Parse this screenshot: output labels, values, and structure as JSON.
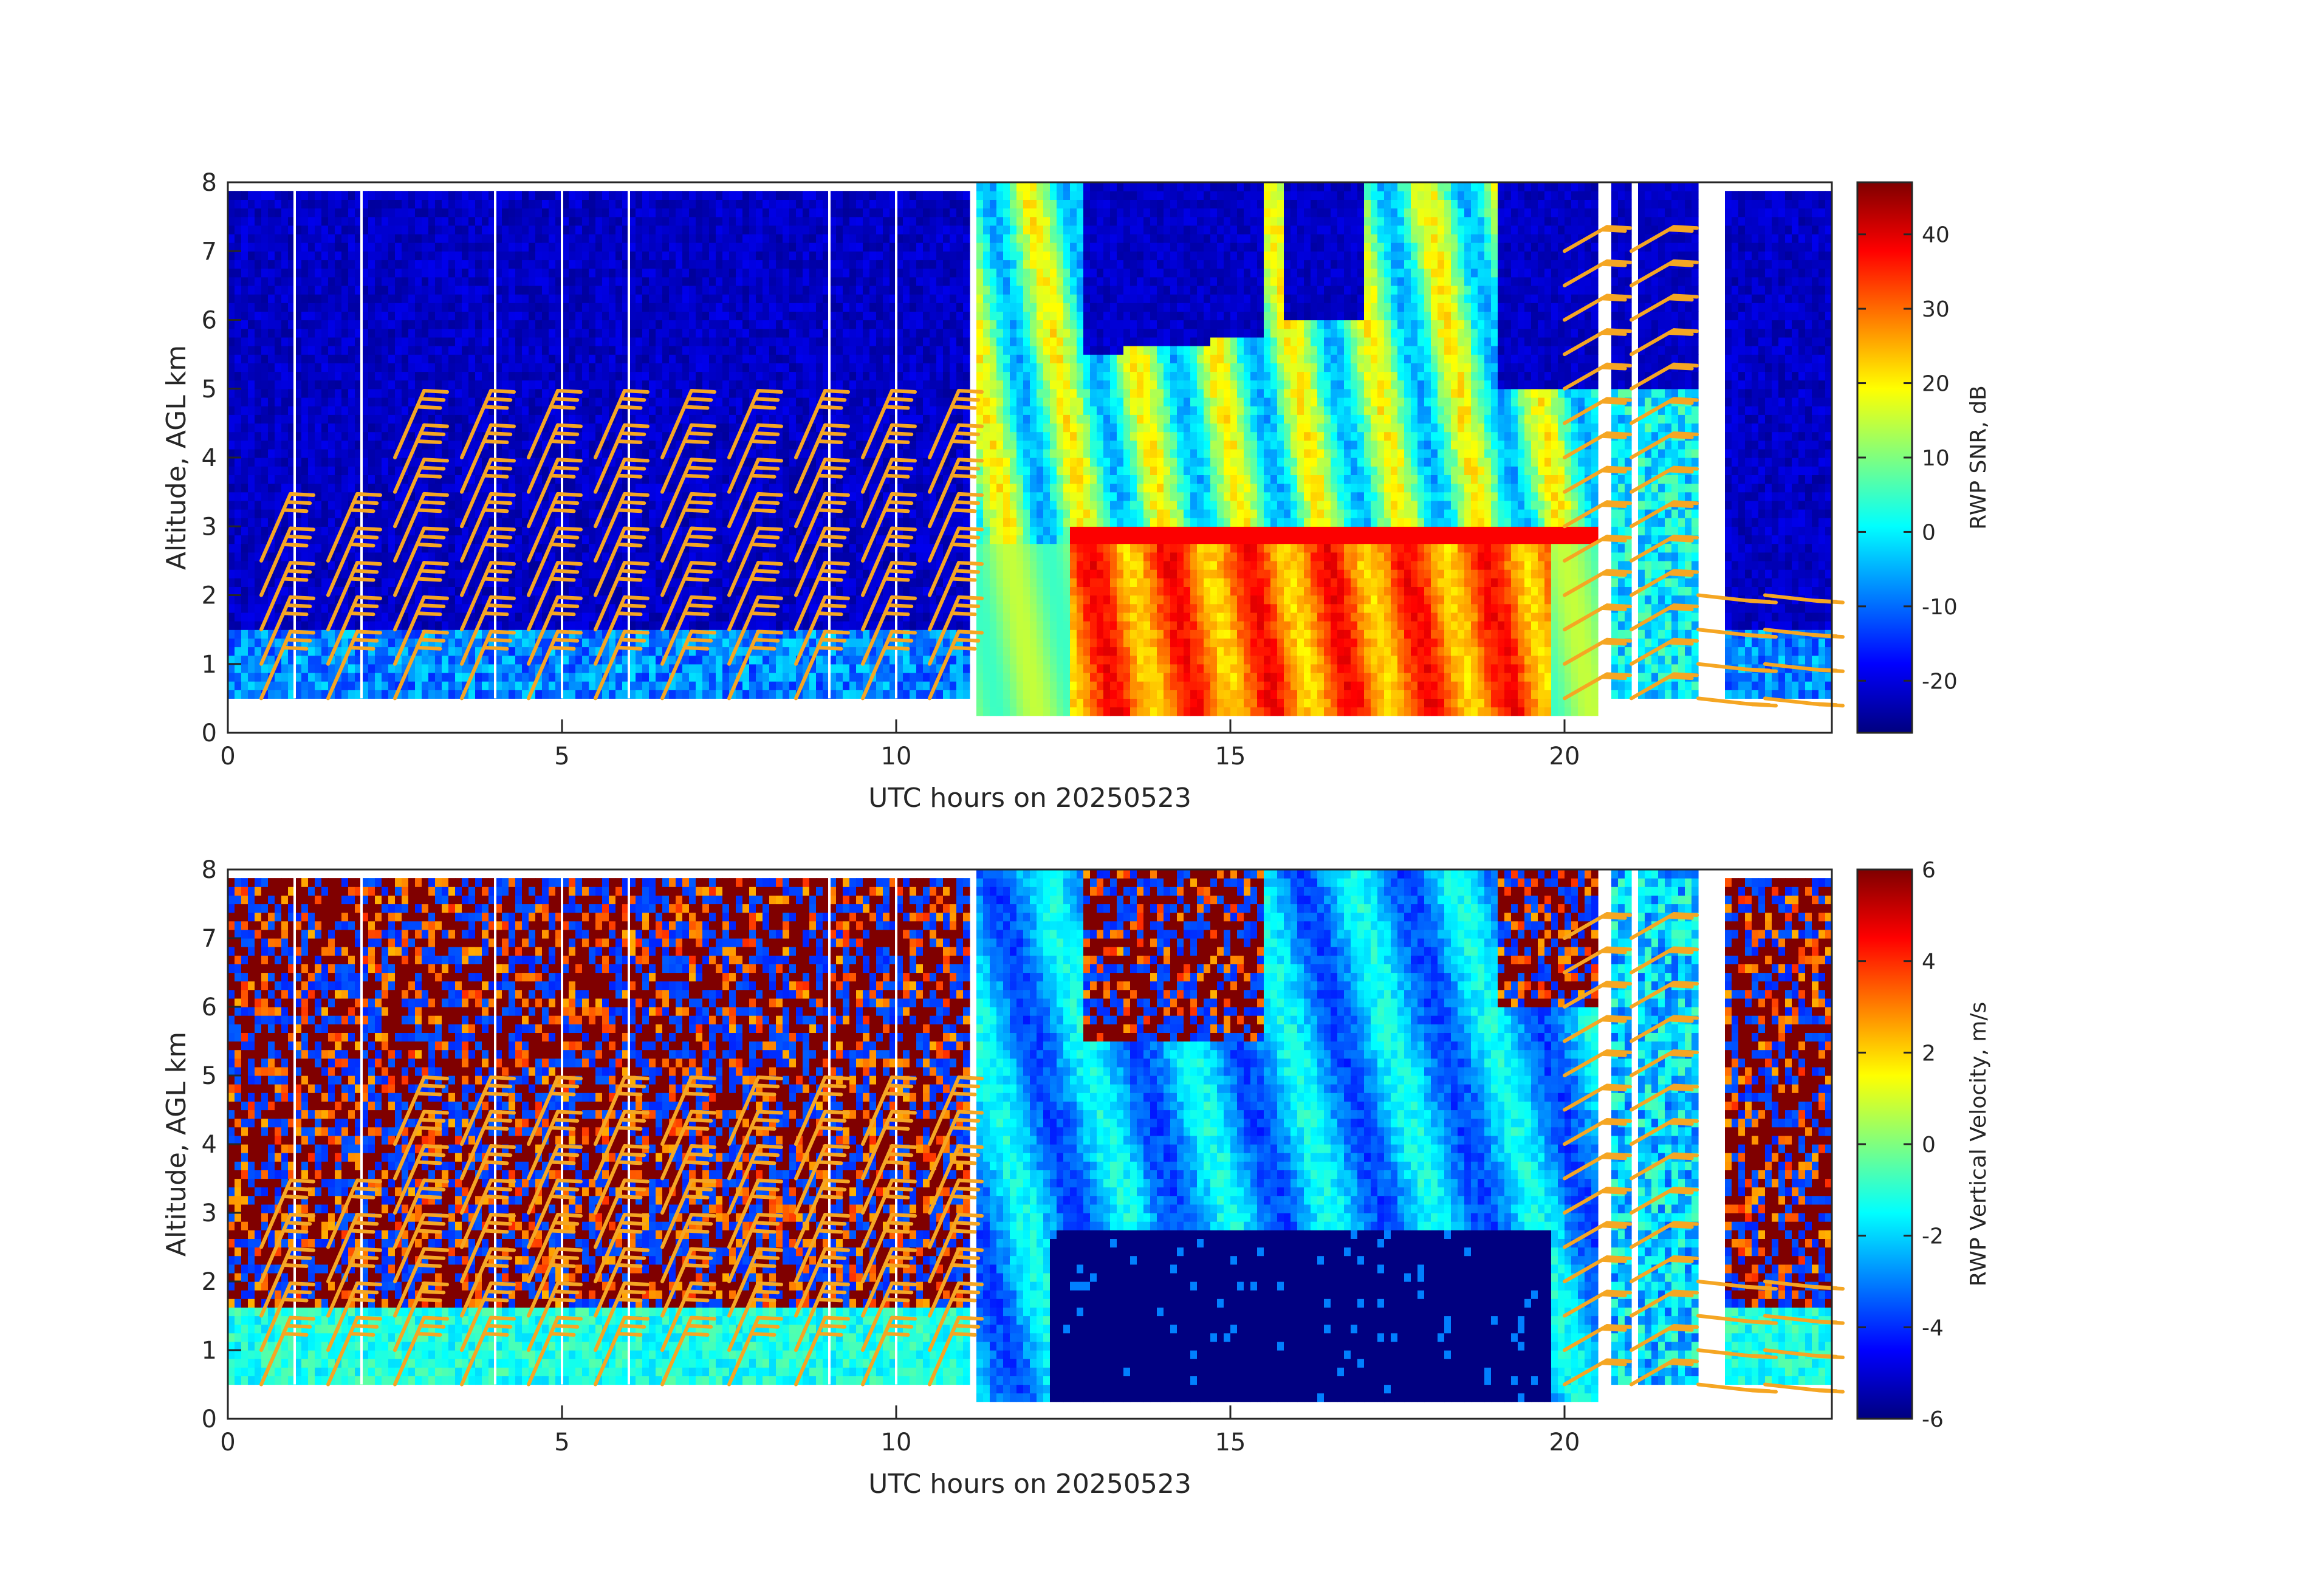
{
  "figure": {
    "charts_note_colormap": "jet",
    "barb_color": "#f5a623",
    "background": "#ffffff"
  },
  "chart_data": [
    {
      "type": "heatmap",
      "xlabel": "UTC hours on 20250523",
      "ylabel": "Altitude, AGL km",
      "xlim": [
        0,
        24
      ],
      "ylim": [
        0,
        8
      ],
      "x_ticks": [
        0,
        5,
        10,
        15,
        20
      ],
      "y_ticks": [
        0,
        1,
        2,
        3,
        4,
        5,
        6,
        7,
        8
      ],
      "colorbar": {
        "label": "RWP SNR, dB",
        "range": [
          -27,
          47
        ],
        "ticks": [
          -20,
          -10,
          0,
          10,
          20,
          30,
          40
        ],
        "colormap": "jet"
      },
      "data_gaps_hours": [
        [
          11.13,
          11.2
        ],
        [
          20.47,
          20.73
        ],
        [
          21.0,
          21.05
        ],
        [
          22.05,
          22.35
        ]
      ],
      "regions": [
        {
          "desc": "background",
          "x": [
            0,
            11.2
          ],
          "y": [
            0.5,
            7.9
          ],
          "value": -22
        },
        {
          "desc": "boundary layer",
          "x": [
            0,
            9
          ],
          "y": [
            0.5,
            1.5
          ],
          "value": -5
        },
        {
          "desc": "precipitation echo",
          "x": [
            11.5,
            19.8
          ],
          "y": [
            0.25,
            8.0
          ],
          "value": 15
        },
        {
          "desc": "strong echo core",
          "x": [
            12.6,
            19.8
          ],
          "y": [
            0.25,
            2.8
          ],
          "value": 35
        },
        {
          "desc": "melting layer",
          "x": [
            12.6,
            19.5
          ],
          "y": [
            2.6,
            3.0
          ],
          "value": 40
        },
        {
          "desc": "clear air aloft",
          "x": [
            12.8,
            15.5
          ],
          "y": [
            5.5,
            8.0
          ],
          "value": -22
        },
        {
          "desc": "clear air aloft",
          "x": [
            15.8,
            17.0
          ],
          "y": [
            6.0,
            8.0
          ],
          "value": -22
        },
        {
          "desc": "clear air aloft",
          "x": [
            19.0,
            20.4
          ],
          "y": [
            5.0,
            8.0
          ],
          "value": -22
        },
        {
          "desc": "late echo",
          "x": [
            20.8,
            22.0
          ],
          "y": [
            0.5,
            5.0
          ],
          "value": 5
        },
        {
          "desc": "late background",
          "x": [
            22.4,
            24
          ],
          "y": [
            0.5,
            7.9
          ],
          "value": -22
        }
      ]
    },
    {
      "type": "heatmap",
      "xlabel": "UTC hours on 20250523",
      "ylabel": "Altitude, AGL km",
      "xlim": [
        0,
        24
      ],
      "ylim": [
        0,
        8
      ],
      "x_ticks": [
        0,
        5,
        10,
        15,
        20
      ],
      "y_ticks": [
        0,
        1,
        2,
        3,
        4,
        5,
        6,
        7,
        8
      ],
      "colorbar": {
        "label": "RWP Vertical Velocity, m/s",
        "range": [
          -6,
          6
        ],
        "ticks": [
          -6,
          -4,
          -2,
          0,
          2,
          4,
          6
        ],
        "colormap": "jet"
      },
      "data_gaps_hours": [
        [
          11.13,
          11.2
        ],
        [
          20.47,
          20.73
        ],
        [
          21.0,
          21.05
        ],
        [
          22.05,
          22.35
        ]
      ],
      "regions": [
        {
          "desc": "noise",
          "x": [
            0,
            11.2
          ],
          "y": [
            1.6,
            7.9
          ],
          "value": "noise"
        },
        {
          "desc": "boundary layer",
          "x": [
            0,
            9
          ],
          "y": [
            0.5,
            1.6
          ],
          "value": -1
        },
        {
          "desc": "precip fall",
          "x": [
            11.5,
            20.4
          ],
          "y": [
            2.8,
            8.0
          ],
          "value": -2.5
        },
        {
          "desc": "rain below melting layer",
          "x": [
            12.3,
            19.8
          ],
          "y": [
            0.25,
            2.8
          ],
          "value": -6
        },
        {
          "desc": "noise aloft",
          "x": [
            12.8,
            15.5
          ],
          "y": [
            5.5,
            8.0
          ],
          "value": "noise"
        },
        {
          "desc": "late noise",
          "x": [
            22.4,
            24
          ],
          "y": [
            0.5,
            7.9
          ],
          "value": "noise"
        }
      ]
    }
  ],
  "wind_barbs": {
    "color": "#f5a623",
    "times_hours": [
      0.5,
      1.5,
      2.5,
      3.5,
      4.5,
      5.5,
      6.5,
      7.5,
      8.5,
      9.5,
      10.5,
      20.0,
      21.0,
      22.0,
      23.0
    ],
    "heights_km": [
      0.5,
      1.0,
      1.5,
      2.0,
      2.5,
      3.0,
      3.5,
      4.0,
      4.5,
      5.0,
      5.5,
      6.0,
      6.5,
      7.0
    ]
  }
}
